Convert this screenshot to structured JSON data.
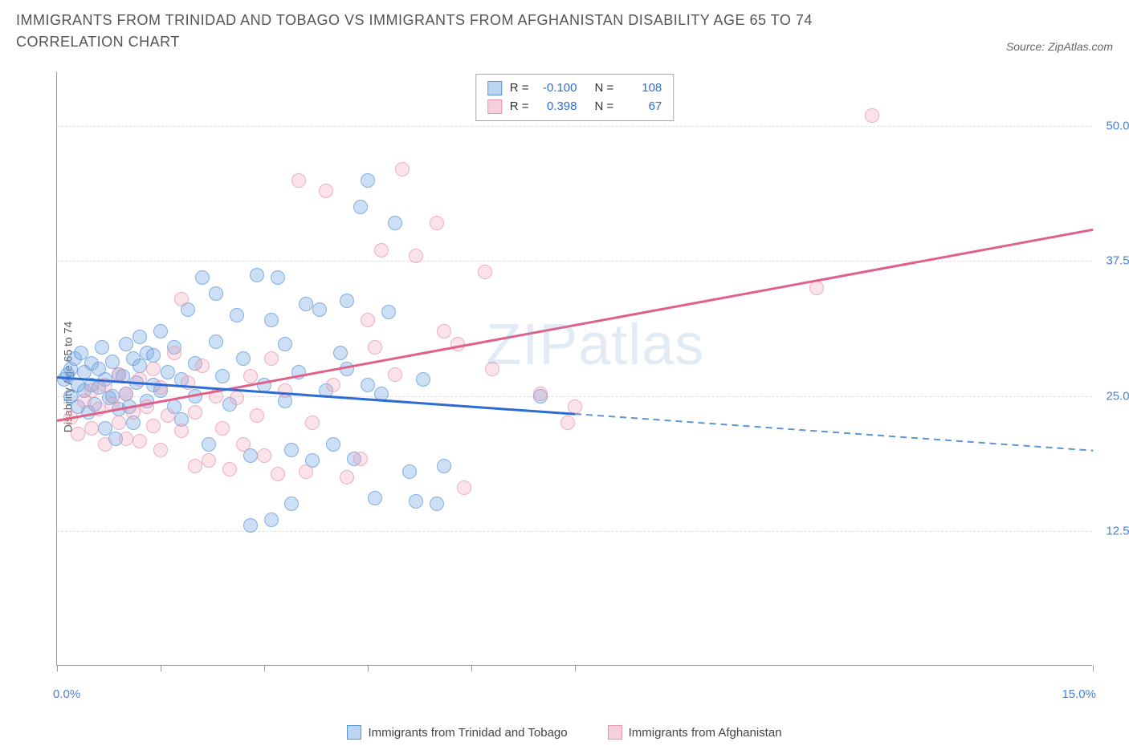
{
  "title": "IMMIGRANTS FROM TRINIDAD AND TOBAGO VS IMMIGRANTS FROM AFGHANISTAN DISABILITY AGE 65 TO 74 CORRELATION CHART",
  "source": "Source: ZipAtlas.com",
  "y_axis_label": "Disability Age 65 to 74",
  "watermark_prefix": "ZIP",
  "watermark_suffix": "atlas",
  "chart": {
    "type": "scatter",
    "xlim": [
      0,
      15
    ],
    "ylim": [
      0,
      55
    ],
    "x_min_label": "0.0%",
    "x_max_label": "15.0%",
    "x_ticks": [
      0,
      1.5,
      3.0,
      4.5,
      6.0,
      7.5,
      15.0
    ],
    "y_gridlines": [
      12.5,
      25.0,
      37.5,
      50.0
    ],
    "y_tick_labels": [
      "12.5%",
      "25.0%",
      "37.5%",
      "50.0%"
    ],
    "background_color": "#ffffff",
    "grid_color": "#dddddd",
    "axis_color": "#999999",
    "marker_size": 18,
    "series": [
      {
        "name": "Immigrants from Trinidad and Tobago",
        "color_fill": "rgba(120,170,230,0.5)",
        "color_stroke": "#5a95d8",
        "trend_color": "#2c6cd4",
        "R": "-0.100",
        "N": "108",
        "trend": {
          "x1": 0,
          "y1": 26.8,
          "x2_solid": 7.5,
          "y2_solid": 23.4,
          "x2_dash": 15,
          "y2_dash": 20.0
        },
        "points": [
          [
            0.1,
            26.5
          ],
          [
            0.15,
            27.0
          ],
          [
            0.2,
            25.0
          ],
          [
            0.2,
            27.5
          ],
          [
            0.25,
            28.5
          ],
          [
            0.3,
            24.0
          ],
          [
            0.3,
            26.0
          ],
          [
            0.35,
            29.0
          ],
          [
            0.4,
            25.5
          ],
          [
            0.4,
            27.2
          ],
          [
            0.45,
            23.5
          ],
          [
            0.5,
            26.0
          ],
          [
            0.5,
            28.0
          ],
          [
            0.55,
            24.2
          ],
          [
            0.6,
            27.5
          ],
          [
            0.6,
            25.8
          ],
          [
            0.65,
            29.5
          ],
          [
            0.7,
            22.0
          ],
          [
            0.7,
            26.5
          ],
          [
            0.75,
            24.8
          ],
          [
            0.8,
            28.2
          ],
          [
            0.8,
            25.0
          ],
          [
            0.85,
            21.0
          ],
          [
            0.9,
            27.0
          ],
          [
            0.9,
            23.8
          ],
          [
            0.95,
            26.8
          ],
          [
            1.0,
            25.2
          ],
          [
            1.0,
            29.8
          ],
          [
            1.05,
            24.0
          ],
          [
            1.1,
            28.5
          ],
          [
            1.1,
            22.5
          ],
          [
            1.15,
            26.2
          ],
          [
            1.2,
            27.8
          ],
          [
            1.2,
            30.5
          ],
          [
            1.3,
            29.0
          ],
          [
            1.3,
            24.5
          ],
          [
            1.4,
            26.0
          ],
          [
            1.4,
            28.8
          ],
          [
            1.5,
            25.5
          ],
          [
            1.5,
            31.0
          ],
          [
            1.6,
            27.2
          ],
          [
            1.7,
            24.0
          ],
          [
            1.7,
            29.5
          ],
          [
            1.8,
            26.5
          ],
          [
            1.8,
            22.8
          ],
          [
            1.9,
            33.0
          ],
          [
            2.0,
            28.0
          ],
          [
            2.0,
            25.0
          ],
          [
            2.1,
            36.0
          ],
          [
            2.2,
            20.5
          ],
          [
            2.3,
            30.0
          ],
          [
            2.3,
            34.5
          ],
          [
            2.4,
            26.8
          ],
          [
            2.5,
            24.2
          ],
          [
            2.6,
            32.5
          ],
          [
            2.7,
            28.5
          ],
          [
            2.8,
            13.0
          ],
          [
            2.8,
            19.5
          ],
          [
            2.9,
            36.2
          ],
          [
            3.0,
            26.0
          ],
          [
            3.1,
            32.0
          ],
          [
            3.1,
            13.5
          ],
          [
            3.2,
            36.0
          ],
          [
            3.3,
            24.5
          ],
          [
            3.3,
            29.8
          ],
          [
            3.4,
            15.0
          ],
          [
            3.4,
            20.0
          ],
          [
            3.5,
            27.2
          ],
          [
            3.6,
            33.5
          ],
          [
            3.7,
            19.0
          ],
          [
            3.8,
            33.0
          ],
          [
            3.9,
            25.5
          ],
          [
            4.0,
            20.5
          ],
          [
            4.1,
            29.0
          ],
          [
            4.2,
            33.8
          ],
          [
            4.2,
            27.5
          ],
          [
            4.3,
            19.2
          ],
          [
            4.4,
            42.5
          ],
          [
            4.5,
            45.0
          ],
          [
            4.5,
            26.0
          ],
          [
            4.6,
            15.5
          ],
          [
            4.7,
            25.2
          ],
          [
            4.8,
            32.8
          ],
          [
            4.9,
            41.0
          ],
          [
            5.1,
            18.0
          ],
          [
            5.2,
            15.2
          ],
          [
            5.3,
            26.5
          ],
          [
            5.5,
            15.0
          ],
          [
            5.6,
            18.5
          ],
          [
            7.0,
            25.0
          ]
        ]
      },
      {
        "name": "Immigrants from Afghanistan",
        "color_fill": "rgba(240,160,185,0.4)",
        "color_stroke": "#e895b0",
        "trend_color": "#e06088",
        "R": "0.398",
        "N": "67",
        "trend": {
          "x1": 0,
          "y1": 22.8,
          "x2_solid": 15,
          "y2_solid": 40.5
        },
        "points": [
          [
            0.2,
            23.0
          ],
          [
            0.3,
            21.5
          ],
          [
            0.4,
            24.5
          ],
          [
            0.5,
            22.0
          ],
          [
            0.5,
            25.5
          ],
          [
            0.6,
            23.8
          ],
          [
            0.7,
            20.5
          ],
          [
            0.7,
            26.0
          ],
          [
            0.8,
            24.2
          ],
          [
            0.9,
            22.5
          ],
          [
            0.9,
            27.0
          ],
          [
            1.0,
            21.0
          ],
          [
            1.0,
            25.2
          ],
          [
            1.1,
            23.5
          ],
          [
            1.2,
            20.8
          ],
          [
            1.2,
            26.5
          ],
          [
            1.3,
            24.0
          ],
          [
            1.4,
            22.2
          ],
          [
            1.4,
            27.5
          ],
          [
            1.5,
            20.0
          ],
          [
            1.5,
            25.8
          ],
          [
            1.6,
            23.2
          ],
          [
            1.7,
            29.0
          ],
          [
            1.8,
            21.8
          ],
          [
            1.8,
            34.0
          ],
          [
            1.9,
            26.2
          ],
          [
            2.0,
            18.5
          ],
          [
            2.0,
            23.5
          ],
          [
            2.1,
            27.8
          ],
          [
            2.2,
            19.0
          ],
          [
            2.3,
            25.0
          ],
          [
            2.4,
            22.0
          ],
          [
            2.5,
            18.2
          ],
          [
            2.6,
            24.8
          ],
          [
            2.7,
            20.5
          ],
          [
            2.8,
            26.8
          ],
          [
            2.9,
            23.2
          ],
          [
            3.0,
            19.5
          ],
          [
            3.1,
            28.5
          ],
          [
            3.2,
            17.8
          ],
          [
            3.3,
            25.5
          ],
          [
            3.5,
            45.0
          ],
          [
            3.6,
            18.0
          ],
          [
            3.7,
            22.5
          ],
          [
            3.9,
            44.0
          ],
          [
            4.0,
            26.0
          ],
          [
            4.2,
            17.5
          ],
          [
            4.4,
            19.2
          ],
          [
            4.5,
            32.0
          ],
          [
            4.6,
            29.5
          ],
          [
            4.7,
            38.5
          ],
          [
            4.9,
            27.0
          ],
          [
            5.0,
            46.0
          ],
          [
            5.2,
            38.0
          ],
          [
            5.5,
            41.0
          ],
          [
            5.6,
            31.0
          ],
          [
            5.8,
            29.8
          ],
          [
            5.9,
            16.5
          ],
          [
            6.2,
            36.5
          ],
          [
            6.3,
            27.5
          ],
          [
            7.0,
            25.2
          ],
          [
            7.4,
            22.5
          ],
          [
            7.5,
            24.0
          ],
          [
            11.0,
            35.0
          ],
          [
            11.8,
            51.0
          ]
        ]
      }
    ]
  },
  "stat_box": {
    "rows": [
      {
        "series": 0,
        "R_label": "R =",
        "N_label": "N ="
      },
      {
        "series": 1,
        "R_label": "R =",
        "N_label": "N ="
      }
    ]
  },
  "bottom_legend": [
    {
      "series": 0
    },
    {
      "series": 1
    }
  ]
}
